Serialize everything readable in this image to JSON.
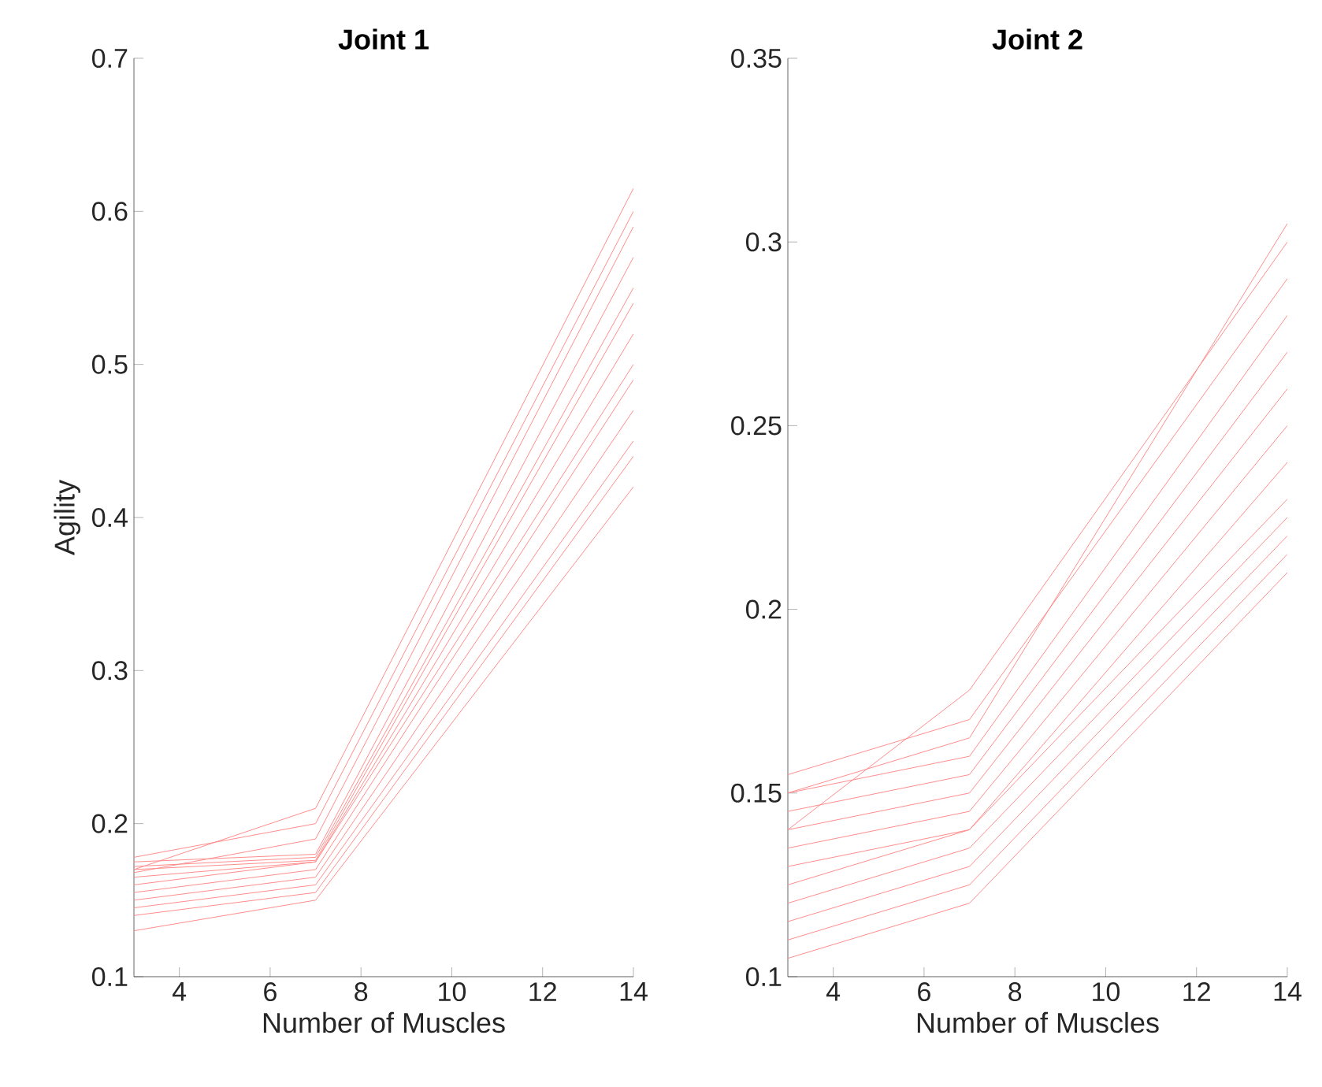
{
  "chart_data": [
    {
      "type": "line",
      "title": "Joint 1",
      "xlabel": "Number of Muscles",
      "ylabel": "Agility",
      "xlim": [
        3,
        14
      ],
      "xticks": [
        4,
        6,
        8,
        10,
        12,
        14
      ],
      "ylim": [
        0.1,
        0.7
      ],
      "yticks": [
        0.1,
        0.2,
        0.3,
        0.4,
        0.5,
        0.6,
        0.7
      ],
      "grid": false,
      "marker": "none",
      "line_style": "solid",
      "x": [
        3,
        7,
        14
      ],
      "series": [
        {
          "color": "#ff8c8c",
          "values": [
            0.13,
            0.15,
            0.42
          ]
        },
        {
          "color": "#ff8c8c",
          "values": [
            0.14,
            0.155,
            0.44
          ]
        },
        {
          "color": "#ff8c8c",
          "values": [
            0.145,
            0.16,
            0.45
          ]
        },
        {
          "color": "#ff8c8c",
          "values": [
            0.15,
            0.165,
            0.47
          ]
        },
        {
          "color": "#ff8c8c",
          "values": [
            0.155,
            0.17,
            0.49
          ]
        },
        {
          "color": "#ff8c8c",
          "values": [
            0.16,
            0.175,
            0.5
          ]
        },
        {
          "color": "#ff8c8c",
          "values": [
            0.165,
            0.175,
            0.52
          ]
        },
        {
          "color": "#ff8c8c",
          "values": [
            0.17,
            0.176,
            0.54
          ]
        },
        {
          "color": "#ff8c8c",
          "values": [
            0.172,
            0.178,
            0.55
          ]
        },
        {
          "color": "#ff8c8c",
          "values": [
            0.175,
            0.18,
            0.57
          ]
        },
        {
          "color": "#ff8c8c",
          "values": [
            0.168,
            0.19,
            0.59
          ]
        },
        {
          "color": "#ff8c8c",
          "values": [
            0.178,
            0.2,
            0.6
          ]
        },
        {
          "color": "#ff8c8c",
          "values": [
            0.17,
            0.21,
            0.615
          ]
        }
      ]
    },
    {
      "type": "line",
      "title": "Joint 2",
      "xlabel": "Number of Muscles",
      "xlim": [
        3,
        14
      ],
      "xticks": [
        4,
        6,
        8,
        10,
        12,
        14
      ],
      "ylim": [
        0.1,
        0.35
      ],
      "yticks": [
        0.1,
        0.15,
        0.2,
        0.25,
        0.3,
        0.35
      ],
      "grid": false,
      "marker": "none",
      "line_style": "solid",
      "x": [
        3,
        7,
        14
      ],
      "series": [
        {
          "color": "#ff8c8c",
          "values": [
            0.105,
            0.12,
            0.21
          ]
        },
        {
          "color": "#ff8c8c",
          "values": [
            0.11,
            0.125,
            0.215
          ]
        },
        {
          "color": "#ff8c8c",
          "values": [
            0.115,
            0.13,
            0.22
          ]
        },
        {
          "color": "#ff8c8c",
          "values": [
            0.12,
            0.135,
            0.225
          ]
        },
        {
          "color": "#ff8c8c",
          "values": [
            0.125,
            0.14,
            0.23
          ]
        },
        {
          "color": "#ff8c8c",
          "values": [
            0.13,
            0.14,
            0.24
          ]
        },
        {
          "color": "#ff8c8c",
          "values": [
            0.135,
            0.145,
            0.25
          ]
        },
        {
          "color": "#ff8c8c",
          "values": [
            0.14,
            0.15,
            0.26
          ]
        },
        {
          "color": "#ff8c8c",
          "values": [
            0.145,
            0.155,
            0.27
          ]
        },
        {
          "color": "#ff8c8c",
          "values": [
            0.15,
            0.16,
            0.28
          ]
        },
        {
          "color": "#ff8c8c",
          "values": [
            0.155,
            0.17,
            0.29
          ]
        },
        {
          "color": "#ff8c8c",
          "values": [
            0.14,
            0.178,
            0.3
          ]
        },
        {
          "color": "#ff8c8c",
          "values": [
            0.15,
            0.165,
            0.305
          ]
        }
      ]
    }
  ]
}
